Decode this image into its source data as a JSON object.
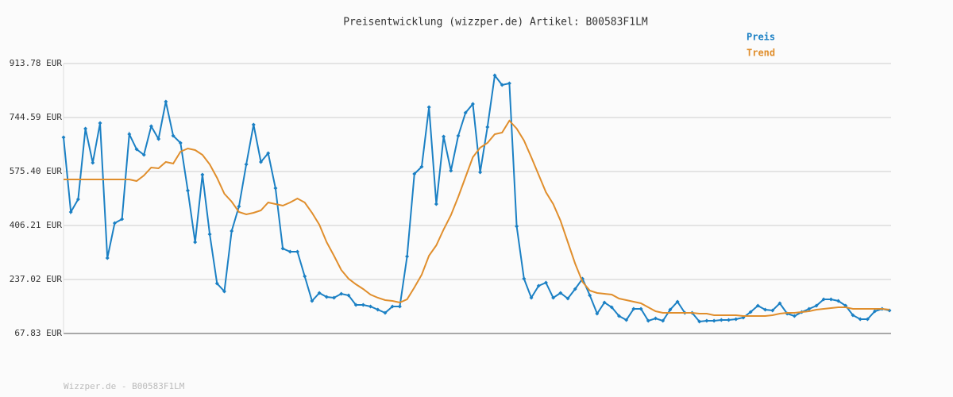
{
  "chart_data": {
    "type": "line",
    "title": "Preisentwicklung (wizzper.de) Artikel: B00583F1LM",
    "footer": "Wizzper.de - B00583F1LM",
    "ylim": [
      67.83,
      913.78
    ],
    "yticks": [
      {
        "value": 67.83,
        "label": "67.83 EUR"
      },
      {
        "value": 237.02,
        "label": "237.02 EUR"
      },
      {
        "value": 406.21,
        "label": "406.21 EUR"
      },
      {
        "value": 575.4,
        "label": "575.40 EUR"
      },
      {
        "value": 744.59,
        "label": "744.59 EUR"
      },
      {
        "value": 913.78,
        "label": "913.78 EUR"
      }
    ],
    "grid": true,
    "legend": "top-right",
    "series": [
      {
        "name": "Preis",
        "color": "#1b80c4",
        "markers": true,
        "values": [
          682.4,
          448.5,
          488.3,
          709.7,
          602.7,
          727.1,
          304.2,
          413.6,
          426.1,
          692.3,
          645.0,
          627.6,
          717.2,
          677.4,
          794.3,
          687.3,
          664.9,
          515.6,
          353.9,
          565.4,
          378.8,
          224.5,
          199.7,
          388.8,
          465.9,
          597.7,
          722.1,
          605.2,
          632.6,
          523.1,
          334.0,
          324.1,
          324.1,
          246.9,
          169.8,
          194.7,
          182.3,
          179.8,
          192.2,
          187.2,
          157.4,
          157.4,
          152.4,
          142.5,
          132.5,
          152.4,
          152.4,
          309.1,
          567.9,
          590.3,
          776.9,
          473.4,
          684.8,
          577.9,
          687.3,
          759.5,
          786.9,
          572.9,
          714.7,
          876.4,
          846.5,
          851.5,
          403.7,
          239.5,
          179.8,
          217.1,
          227.1,
          179.8,
          194.7,
          177.3,
          207.2,
          239.5,
          187.2,
          130.0,
          164.9,
          149.9,
          122.6,
          110.1,
          144.9,
          144.9,
          107.6,
          115.1,
          107.6,
          142.5,
          167.4,
          132.5,
          132.5,
          105.2,
          107.6,
          107.6,
          110.1,
          110.1,
          112.6,
          117.6,
          135.0,
          154.9,
          142.5,
          140.0,
          162.4,
          130.0,
          122.6,
          135.0,
          144.9,
          154.9,
          174.8,
          174.8,
          169.8,
          154.9,
          125.1,
          112.6,
          112.6,
          137.5,
          144.9,
          140.0
        ]
      },
      {
        "name": "Trend",
        "color": "#e08e2c",
        "markers": false,
        "values": [
          550.5,
          550.5,
          550.5,
          550.5,
          550.5,
          550.5,
          550.5,
          550.5,
          550.5,
          550.5,
          545.5,
          562.9,
          587.8,
          585.3,
          605.2,
          600.3,
          637.6,
          647.5,
          642.6,
          627.6,
          597.7,
          555.5,
          505.7,
          480.8,
          448.5,
          441.0,
          446.0,
          453.5,
          478.3,
          473.4,
          468.4,
          478.3,
          490.8,
          478.3,
          446.0,
          408.7,
          353.9,
          311.7,
          266.9,
          239.5,
          222.1,
          207.2,
          189.7,
          179.8,
          172.3,
          169.8,
          164.9,
          174.8,
          212.1,
          251.9,
          311.7,
          344.0,
          393.8,
          438.6,
          495.8,
          558.0,
          620.2,
          650.0,
          664.9,
          692.3,
          697.3,
          734.6,
          709.7,
          672.4,
          620.2,
          565.4,
          510.7,
          473.4,
          421.1,
          353.9,
          286.8,
          229.5,
          202.2,
          194.7,
          192.2,
          189.7,
          177.3,
          172.3,
          167.4,
          162.4,
          149.9,
          137.5,
          132.5,
          132.5,
          132.5,
          132.5,
          132.5,
          130.0,
          130.0,
          125.1,
          125.1,
          125.1,
          125.1,
          122.6,
          122.6,
          122.6,
          122.6,
          125.1,
          130.0,
          132.5,
          132.5,
          135.0,
          137.5,
          142.5,
          144.9,
          147.4,
          149.9,
          149.9,
          144.9,
          144.9,
          144.9,
          144.9,
          144.9,
          142.5
        ]
      }
    ]
  }
}
